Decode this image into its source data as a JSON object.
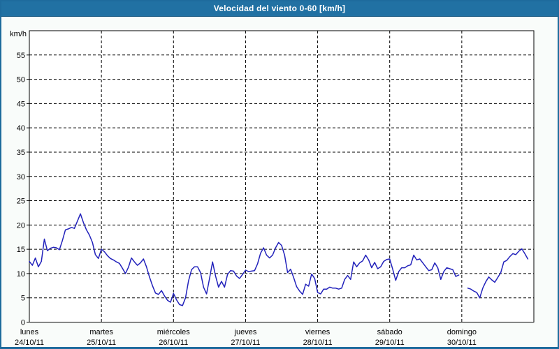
{
  "header": {
    "title": "Velocidad del viento 0-60 [km/h]"
  },
  "colors": {
    "titlebar_bg": "#2171a3",
    "frame_border": "#1e6b9d",
    "page_bg": "#f9fcfa",
    "plot_bg": "#ffffff",
    "line": "#2222bb",
    "grid": "#000000",
    "axis_text": "#000000",
    "title_text": "#ffffff"
  },
  "chart_data": {
    "type": "line",
    "title": "Velocidad del viento 0-60 [km/h]",
    "grid": "dashed",
    "legend": "none",
    "y_axis": {
      "unit_label": "km/h",
      "min": 0,
      "max": 60,
      "tick_step": 5,
      "tick_labels": [
        0,
        5,
        10,
        15,
        20,
        25,
        30,
        35,
        40,
        45,
        50,
        55
      ]
    },
    "x_axis": {
      "hours_total": 168,
      "days": [
        {
          "name": "lunes",
          "date": "24/10/11"
        },
        {
          "name": "martes",
          "date": "25/10/11"
        },
        {
          "name": "miércoles",
          "date": "26/10/11"
        },
        {
          "name": "jueves",
          "date": "27/10/11"
        },
        {
          "name": "viernes",
          "date": "28/10/11"
        },
        {
          "name": "sábado",
          "date": "29/10/11"
        },
        {
          "name": "domingo",
          "date": "30/10/11"
        }
      ]
    },
    "series": [
      {
        "name": "velocidad del viento",
        "unit": "km/h",
        "x_unit": "hours_from_monday_00h",
        "note": "null = data gap (visible break early Sunday)",
        "values": [
          12.5,
          11.7,
          13.2,
          11.4,
          12.5,
          17.1,
          14.7,
          15.2,
          15.4,
          15.3,
          14.9,
          16.8,
          19.0,
          19.2,
          19.5,
          19.3,
          20.8,
          22.3,
          20.5,
          19.0,
          17.9,
          16.4,
          13.9,
          13.1,
          15.0,
          14.5,
          13.7,
          13.1,
          12.8,
          12.4,
          12.1,
          11.1,
          10.0,
          11.3,
          13.2,
          12.4,
          11.7,
          12.2,
          13.0,
          11.4,
          9.3,
          7.5,
          6.0,
          5.7,
          6.5,
          5.4,
          4.5,
          4.1,
          5.9,
          4.6,
          3.6,
          3.4,
          5.0,
          8.5,
          10.8,
          11.4,
          11.4,
          10.2,
          7.2,
          5.8,
          9.0,
          12.4,
          9.5,
          7.2,
          8.4,
          7.2,
          9.8,
          10.6,
          10.5,
          9.5,
          9.0,
          9.8,
          10.7,
          10.4,
          10.5,
          10.6,
          12.0,
          14.2,
          15.3,
          13.8,
          13.2,
          13.8,
          15.3,
          16.4,
          15.8,
          13.8,
          10.2,
          10.9,
          9.2,
          7.3,
          6.4,
          5.7,
          7.8,
          7.4,
          9.9,
          9.0,
          6.1,
          5.8,
          6.8,
          6.8,
          7.2,
          7.0,
          7.0,
          6.8,
          7.0,
          8.8,
          9.6,
          8.8,
          12.4,
          11.4,
          12.2,
          12.6,
          13.8,
          12.8,
          11.2,
          12.3,
          11.0,
          11.4,
          12.5,
          12.9,
          13.0,
          10.9,
          8.6,
          10.4,
          11.2,
          11.2,
          11.6,
          11.8,
          13.8,
          12.8,
          13.0,
          12.2,
          11.4,
          10.6,
          10.8,
          12.2,
          11.2,
          8.8,
          10.4,
          11.2,
          11.0,
          10.8,
          9.4,
          9.7,
          null,
          null,
          7.0,
          6.8,
          6.4,
          6.1,
          5.0,
          7.0,
          8.3,
          9.3,
          8.7,
          8.2,
          9.2,
          10.2,
          12.4,
          12.7,
          13.5,
          14.1,
          13.9,
          14.6,
          15.1,
          14.1,
          13.0
        ]
      }
    ]
  }
}
